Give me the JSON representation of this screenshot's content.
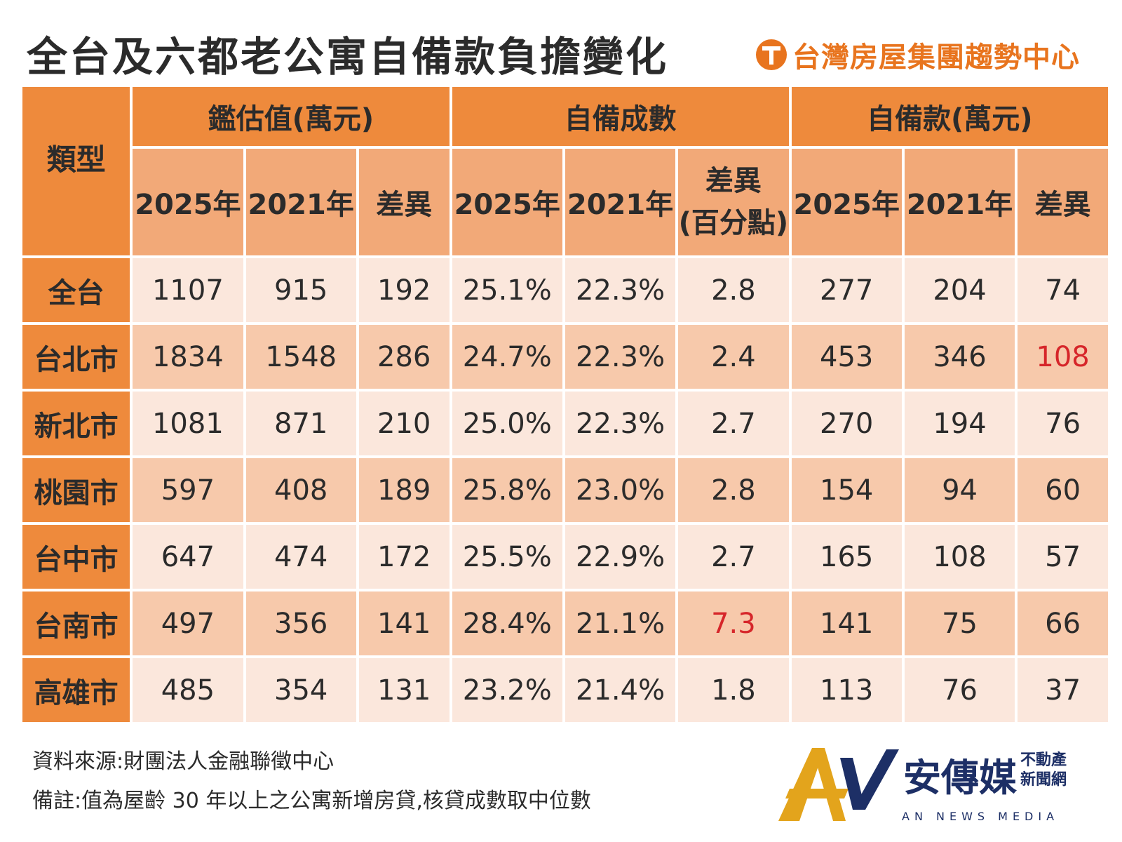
{
  "title": "全台及六都老公寓自備款負擔變化",
  "brand": "台灣房屋集團趨勢中心",
  "chart_data": {
    "type": "table",
    "row_header": "類型",
    "groups": [
      {
        "label": "鑑估值(萬元)",
        "columns": [
          "2025年",
          "2021年",
          "差異"
        ]
      },
      {
        "label": "自備成數",
        "columns": [
          "2025年",
          "2021年",
          "差異(百分點)"
        ]
      },
      {
        "label": "自備款(萬元)",
        "columns": [
          "2025年",
          "2021年",
          "差異"
        ]
      }
    ],
    "header_display": {
      "y2025": "2025年",
      "y2021": "2021年",
      "diff": "差異",
      "diff_line1": "差異",
      "diff_line2": "(百分點)"
    },
    "rows": [
      {
        "label": "全台",
        "values": [
          "1107",
          "915",
          "192",
          "25.1%",
          "22.3%",
          "2.8",
          "277",
          "204",
          "74"
        ]
      },
      {
        "label": "台北市",
        "values": [
          "1834",
          "1548",
          "286",
          "24.7%",
          "22.3%",
          "2.4",
          "453",
          "346",
          "108"
        ]
      },
      {
        "label": "新北市",
        "values": [
          "1081",
          "871",
          "210",
          "25.0%",
          "22.3%",
          "2.7",
          "270",
          "194",
          "76"
        ]
      },
      {
        "label": "桃園市",
        "values": [
          "597",
          "408",
          "189",
          "25.8%",
          "23.0%",
          "2.8",
          "154",
          "94",
          "60"
        ]
      },
      {
        "label": "台中市",
        "values": [
          "647",
          "474",
          "172",
          "25.5%",
          "22.9%",
          "2.7",
          "165",
          "108",
          "57"
        ]
      },
      {
        "label": "台南市",
        "values": [
          "497",
          "356",
          "141",
          "28.4%",
          "21.1%",
          "7.3",
          "141",
          "75",
          "66"
        ]
      },
      {
        "label": "高雄市",
        "values": [
          "485",
          "354",
          "131",
          "23.2%",
          "21.4%",
          "1.8",
          "113",
          "76",
          "37"
        ]
      }
    ],
    "highlights": [
      {
        "row": "台北市",
        "column": "自備款(萬元) 差異",
        "color": "#d6262a"
      },
      {
        "row": "台南市",
        "column": "自備成數 差異(百分點)",
        "color": "#d6262a"
      }
    ]
  },
  "notes": {
    "source": "資料來源:財團法人金融聯徵中心",
    "remark": "備註:值為屋齡 30 年以上之公寓新增房貸,核貸成數取中位數"
  },
  "media": {
    "name": "安傳媒",
    "side_line1": "不動產",
    "side_line2": "新聞網",
    "english": "AN NEWS MEDIA"
  },
  "colors": {
    "header_dark": "#ee8a3c",
    "header_light": "#f2a978",
    "row_light": "#fbe7dc",
    "row_dark": "#f7c9ab",
    "highlight": "#d6262a",
    "brand": "#e8741e",
    "media_navy": "#1d2f66",
    "media_gold": "#e3a41c"
  }
}
